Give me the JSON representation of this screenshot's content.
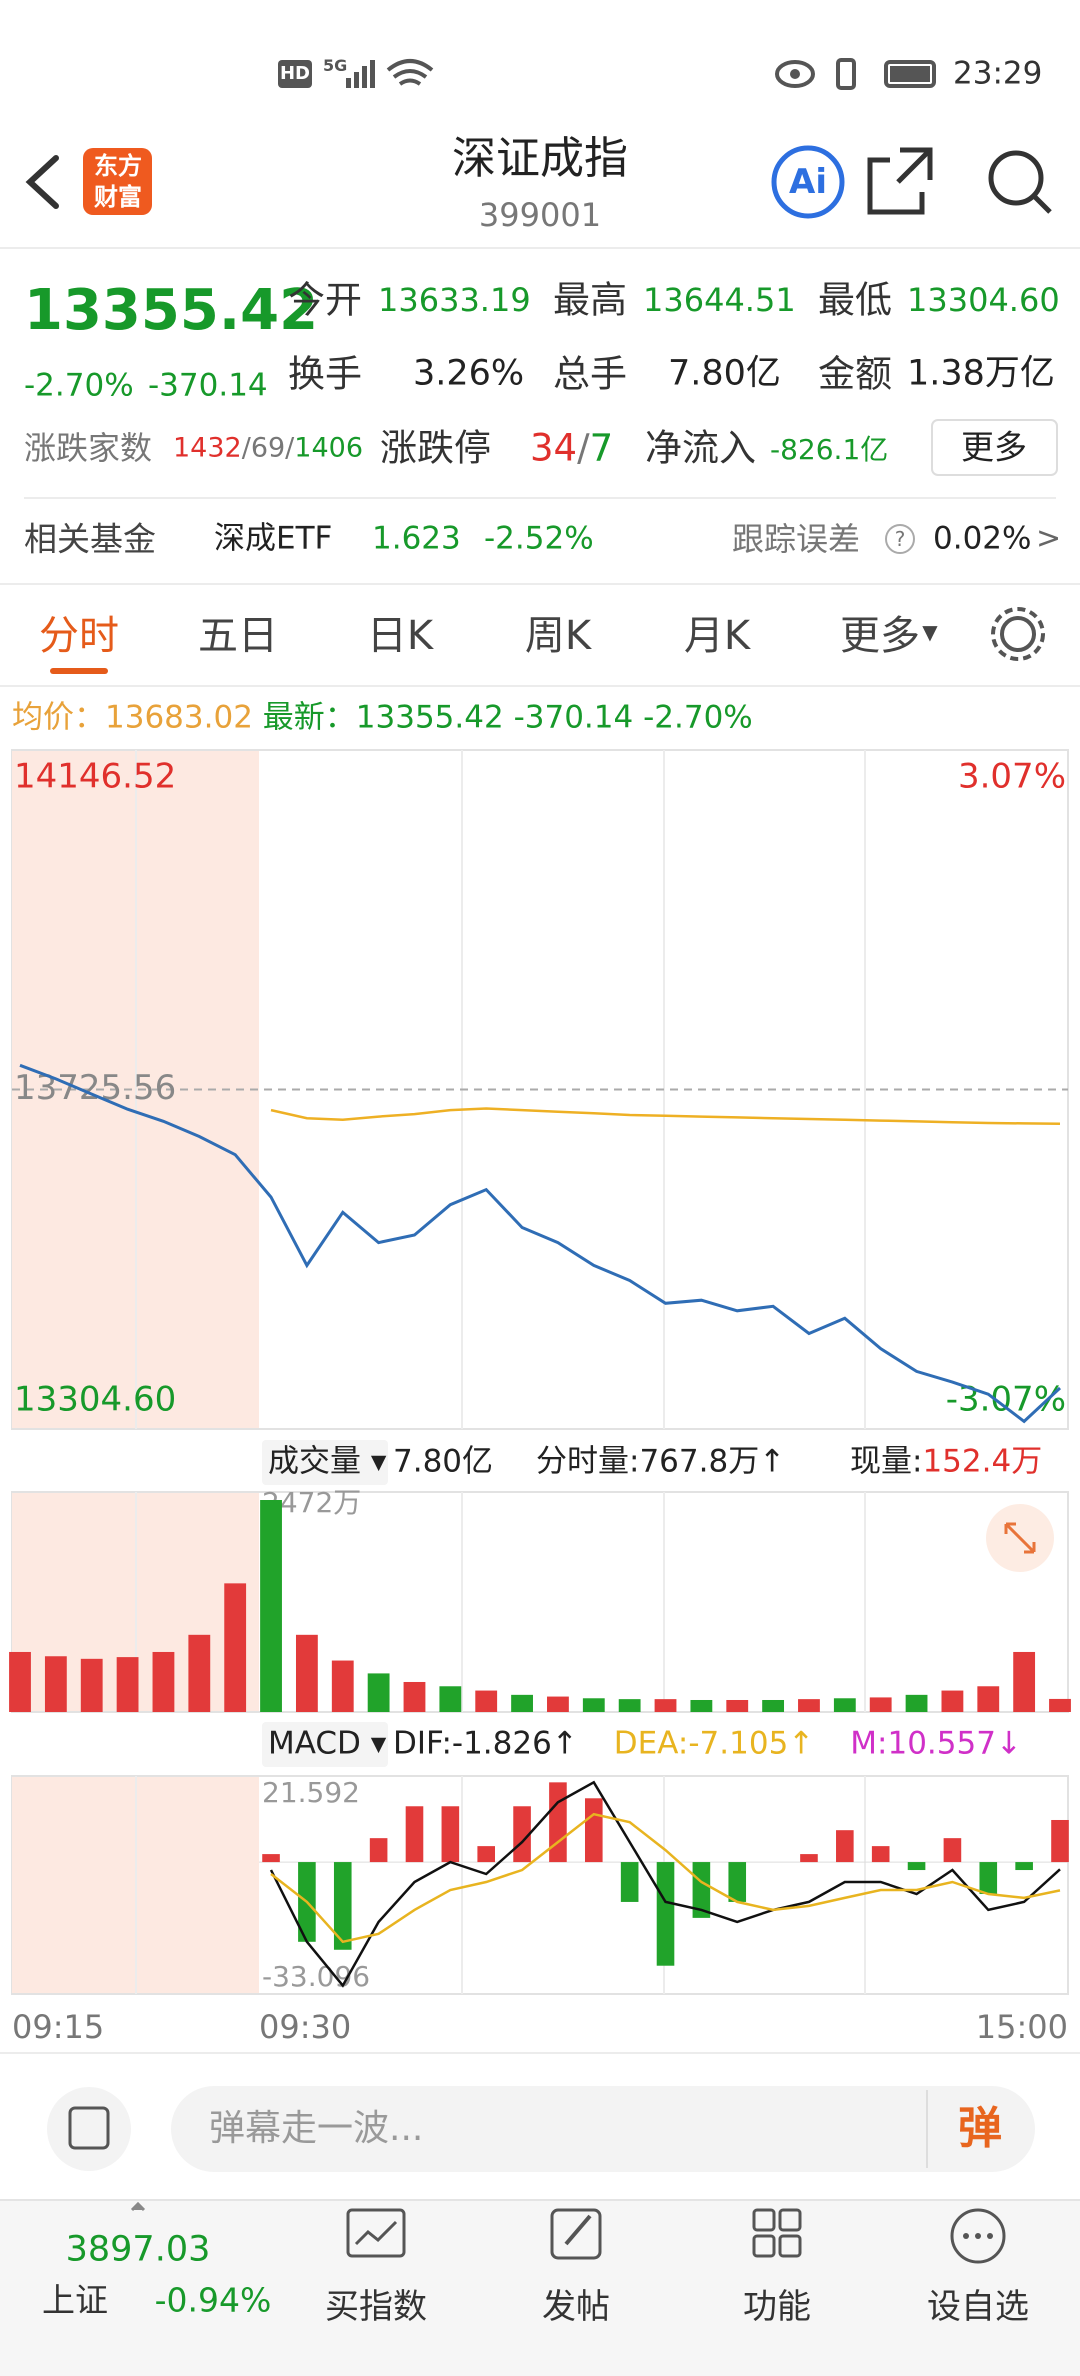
{
  "status_bar": {
    "hd": "HD",
    "net": "5G",
    "time": "23:29"
  },
  "header": {
    "title": "深证成指",
    "code": "399001",
    "logo": [
      "东方",
      "财富"
    ],
    "ai": "Ai"
  },
  "quote": {
    "price": "13355.42",
    "change_pct": "-2.70%",
    "change": "-370.14",
    "stats": [
      {
        "label": "今开",
        "value": "13633.19"
      },
      {
        "label": "最高",
        "value": "13644.51"
      },
      {
        "label": "最低",
        "value": "13304.60"
      },
      {
        "label": "换手",
        "value": "3.26%"
      },
      {
        "label": "总手",
        "value": "7.80亿"
      },
      {
        "label": "金额",
        "value": "1.38万亿"
      }
    ],
    "breadth": {
      "label": "涨跌家数",
      "up": "1432",
      "flat": "/69/",
      "down": "1406"
    },
    "limit": {
      "label": "涨跌停",
      "up": "34",
      "sep": "/",
      "down": "7"
    },
    "inflow": {
      "label": "净流入",
      "value": "-826.1亿"
    },
    "more": "更多"
  },
  "fund": {
    "label": "相关基金",
    "name": "深成ETF",
    "price": "1.623",
    "change": "-2.52%",
    "tracking_label": "跟踪误差",
    "help": "?",
    "tracking": "0.02%",
    "arrow": ">"
  },
  "tabs": {
    "items": [
      "分时",
      "五日",
      "日K",
      "周K",
      "月K",
      "更多"
    ],
    "active": 0
  },
  "info_line": {
    "avg_label": "均价：",
    "avg": "13683.02",
    "last_label": "最新：",
    "last": "13355.42",
    "change": "-370.14",
    "change_pct": "-2.70%"
  },
  "volume_header": {
    "selector": "成交量",
    "total": "7.80亿",
    "per_minute": "分时量:767.8万↑",
    "current_label": "现量:",
    "current": "152.4万"
  },
  "macd_header": {
    "selector": "MACD"
  },
  "time_axis": [
    "09:15",
    "09:30",
    "15:00"
  ],
  "chart_data": [
    {
      "type": "line",
      "ylim": [
        13304.6,
        14146.52
      ],
      "yticks": [
        14146.52,
        13725.56,
        {
          "value": 13304.6,
          "label": "13304.60"
        }
      ],
      "y2lim": [
        -3.07,
        3.07
      ],
      "y2ticks": [
        {
          "value": 3.07,
          "label": "3.07%"
        },
        {
          "value": -3.07,
          "label": "-3.07%"
        }
      ],
      "grid": true,
      "series": [
        {
          "color": "#2f6db5",
          "values": [
            13755.6,
            13738.7,
            13719.9,
            13701.1,
            13686.1,
            13667.3,
            13644.7,
            13592.1,
            13507.5,
            13573.3,
            13535.7,
            13545.1,
            13582.7,
            13601.5,
            13554.5,
            13535.7,
            13507.5,
            13488.7,
            13460.5,
            13464.3,
            13451.2,
            13456.8,
            13423.0,
            13441.8,
            13404.2,
            13376.0,
            13362.8,
            13347.8,
            13314.0,
            13355.42
          ]
        },
        {
          "color": "#eeb024",
          "values": [
            null,
            null,
            null,
            null,
            null,
            null,
            null,
            13700,
            13690,
            13688,
            13692,
            13695,
            13700,
            13702,
            13700,
            13698,
            13696,
            13694,
            13693,
            13692,
            13691,
            13690,
            13689,
            13688,
            13687,
            13686,
            13685,
            13684,
            13683.5,
            13683.02
          ]
        }
      ]
    },
    {
      "type": "bar",
      "ylim": [
        0,
        2472
      ],
      "yticks": [
        {
          "value": 2472,
          "label": "2472万"
        }
      ],
      "values": [
        700,
        650,
        620,
        640,
        700,
        900,
        1500,
        2472,
        900,
        600,
        450,
        350,
        300,
        250,
        200,
        180,
        160,
        150,
        150,
        140,
        140,
        140,
        150,
        160,
        170,
        200,
        250,
        300,
        700,
        152.4
      ],
      "colors": [
        "#e23a3a",
        "#e23a3a",
        "#e23a3a",
        "#e23a3a",
        "#e23a3a",
        "#e23a3a",
        "#e23a3a",
        "#21a32a",
        "#e23a3a",
        "#e23a3a",
        "#21a32a",
        "#e23a3a",
        "#21a32a",
        "#e23a3a",
        "#21a32a",
        "#e23a3a",
        "#21a32a",
        "#21a32a",
        "#e23a3a",
        "#21a32a",
        "#e23a3a",
        "#21a32a",
        "#e23a3a",
        "#21a32a",
        "#e23a3a",
        "#21a32a",
        "#e23a3a",
        "#e23a3a",
        "#e23a3a",
        "#e23a3a"
      ]
    },
    {
      "type": "macd",
      "ylim": [
        -33.096,
        21.592
      ],
      "yticks": [
        21.592,
        -33.096
      ],
      "legend": [
        {
          "text": "DIF:-1.826↑",
          "color": "#222222"
        },
        {
          "text": "DEA:-7.105↑",
          "color": "#e8b420"
        },
        {
          "text": "M:10.557↓",
          "color": "#d030c8"
        }
      ],
      "series": [
        {
          "color": "#111111",
          "values": [
            null,
            null,
            null,
            null,
            null,
            null,
            null,
            -2,
            -20,
            -31,
            -15,
            -5,
            0,
            -3,
            5,
            15,
            20,
            5,
            -10,
            -12,
            -15,
            -12,
            -10,
            -5,
            -5,
            -8,
            -2,
            -12,
            -10,
            -1.826
          ]
        },
        {
          "color": "#e8b420",
          "values": [
            null,
            null,
            null,
            null,
            null,
            null,
            null,
            -3,
            -10,
            -20,
            -18,
            -12,
            -7,
            -5,
            -2,
            5,
            12,
            10,
            3,
            -5,
            -10,
            -12,
            -11,
            -9,
            -7,
            -7,
            -5,
            -8,
            -9,
            -7.105
          ]
        }
      ],
      "bars": {
        "up_color": "#e23a3a",
        "down_color": "#21a32a",
        "values": [
          null,
          null,
          null,
          null,
          null,
          null,
          null,
          2,
          -20,
          -22,
          6,
          14,
          14,
          4,
          14,
          20,
          16,
          -10,
          -26,
          -14,
          -10,
          0,
          2,
          8,
          4,
          -2,
          6,
          -8,
          -2,
          10.557
        ]
      }
    }
  ],
  "input": {
    "placeholder": "弹幕走一波...",
    "button": "弹"
  },
  "index_ticker": {
    "value": "3897.03",
    "name": "上证",
    "change": "-0.94%"
  },
  "nav": [
    "买指数",
    "发帖",
    "功能",
    "设自选"
  ]
}
